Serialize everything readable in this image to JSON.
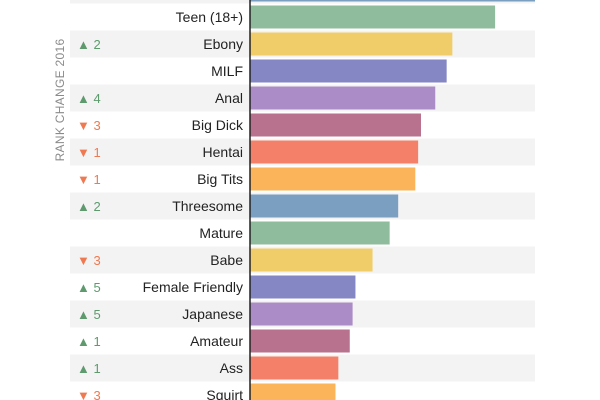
{
  "chart_data": {
    "type": "bar",
    "orientation": "horizontal",
    "ylabel": "RANK CHANGE 2016",
    "categories": [
      "",
      "Teen (18+)",
      "Ebony",
      "MILF",
      "Anal",
      "Big Dick",
      "Hentai",
      "Big Tits",
      "Threesome",
      "Mature",
      "Babe",
      "Female Friendly",
      "Japanese",
      "Amateur",
      "Ass",
      "Squirt"
    ],
    "values": [
      100,
      86,
      71,
      69,
      65,
      60,
      59,
      58,
      52,
      49,
      43,
      37,
      36,
      35,
      31,
      30
    ],
    "rank_changes": [
      "",
      "",
      "▲ 2",
      "",
      "▲ 4",
      "▼ 3",
      "▼ 1",
      "▼ 1",
      "▲ 2",
      "",
      "▼ 3",
      "▲ 5",
      "▲ 5",
      "▲ 1",
      "▲ 1",
      "▼ 3"
    ],
    "bar_colors": [
      "#7a9fc0",
      "#8fbc9c",
      "#f1cd69",
      "#8587c4",
      "#ab8cc6",
      "#b8728d",
      "#f5806a",
      "#fbb459",
      "#7a9fc0",
      "#8fbc9c",
      "#f1cd69",
      "#8587c4",
      "#ab8cc6",
      "#b8728d",
      "#f5806a",
      "#fbb459"
    ],
    "colors": {
      "up": "#5e9a6e",
      "down": "#ef7a52",
      "axis": "#222222",
      "row_shade": "#f3f3f3"
    },
    "xlim": [
      0,
      100
    ]
  }
}
